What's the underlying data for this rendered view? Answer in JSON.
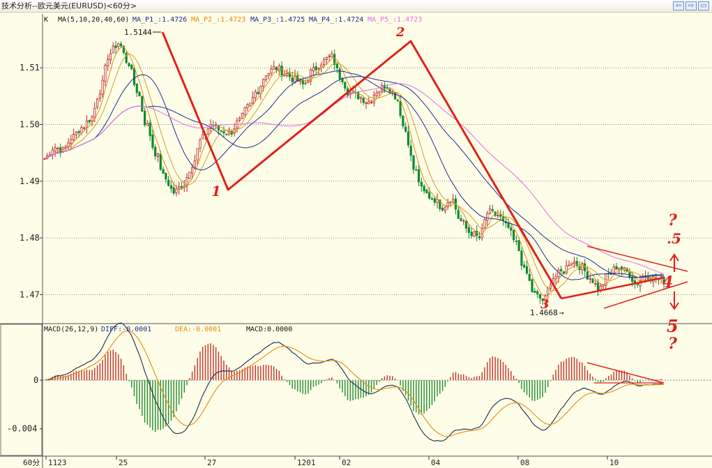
{
  "window": {
    "title": "技术分析--欧元美元(EURUSD)<60分>",
    "controls": [
      "back-icon",
      "forward-icon",
      "restore-icon"
    ]
  },
  "chart_data": [
    {
      "type": "candlestick",
      "panel": "price",
      "title": "K",
      "ma_label": "MA(5,10,20,40,60)",
      "ma_lines": [
        {
          "name": "MA_P1_",
          "value": "1.4726",
          "label": "MA_P1_:1.4726",
          "color": "#1f2c95"
        },
        {
          "name": "MA_P2_",
          "value": "1.4723",
          "label": "MA_P2_:1.4723",
          "color": "#e8890c"
        },
        {
          "name": "MA_P3_",
          "value": "1.4725",
          "label": "MA_P3_:1.4725",
          "color": "#1f2c95"
        },
        {
          "name": "MA_P4_",
          "value": "1.4724",
          "label": "MA_P4_:1.4724",
          "color": "#1f2c95"
        },
        {
          "name": "MA_P5_",
          "value": "1.4723",
          "label": "MA_P5_:1.4723",
          "color": "#e06fe6"
        }
      ],
      "y_ticks": [
        1.51,
        1.5,
        1.49,
        1.48,
        1.47
      ],
      "y_tick_labels": [
        "1.51",
        "1.50",
        "1.49",
        "1.48",
        "1.47"
      ],
      "ylim": [
        1.465,
        1.5195
      ],
      "grid": true,
      "high_label": "1.5144",
      "low_label": "1.4668",
      "path_x": [
        0,
        36,
        52,
        83,
        106,
        130
      ],
      "path_close": [
        1.494,
        1.496,
        1.4955,
        1.4978,
        1.4995,
        1.501,
        1.506,
        1.5125,
        1.5144,
        1.511,
        1.506,
        1.5,
        1.495,
        1.4905,
        1.488,
        1.4895,
        1.493,
        1.4975,
        1.5,
        1.499,
        1.4985,
        1.5005,
        1.503,
        1.506,
        1.509,
        1.51,
        1.509,
        1.508,
        1.507,
        1.5095,
        1.511,
        1.512,
        1.5085,
        1.5055,
        1.505,
        1.504,
        1.506,
        1.507,
        1.505,
        1.499,
        1.492,
        1.488,
        1.487,
        1.4855,
        1.487,
        1.483,
        1.481,
        1.48,
        1.4845,
        1.484,
        1.482,
        1.479,
        1.474,
        1.47,
        1.469,
        1.473,
        1.474,
        1.476,
        1.475,
        1.473,
        1.471,
        1.4735,
        1.475,
        1.474,
        1.472,
        1.4735,
        1.4728,
        1.4724
      ],
      "ma_periods": [
        5,
        10,
        20,
        40,
        60
      ],
      "x_ticks": [
        "1123",
        "25",
        "27",
        "1201",
        "02",
        "04",
        "08",
        "10"
      ],
      "x_period_label": "60分",
      "annotations": {
        "labels": [
          "1",
          "2",
          "3",
          "4",
          "5",
          "?",
          "?",
          ".5"
        ],
        "note": "hand-drawn wave count"
      }
    },
    {
      "type": "bar",
      "panel": "macd",
      "title": "MACD(26,12,9)",
      "diff_label": "DIFF:-0.0001",
      "dea_label": "DEA:-0.0001",
      "macd_label": "MACD:0.0000",
      "y_ticks": [
        0,
        -0.004
      ],
      "y_tick_labels": [
        "0",
        "-0.004"
      ],
      "ylim": [
        -0.0062,
        0.0046
      ],
      "colors": {
        "positive": "#c0302a",
        "negative": "#1f8a2e",
        "diff": "#1b2a4a",
        "dea": "#e8890c"
      }
    }
  ]
}
